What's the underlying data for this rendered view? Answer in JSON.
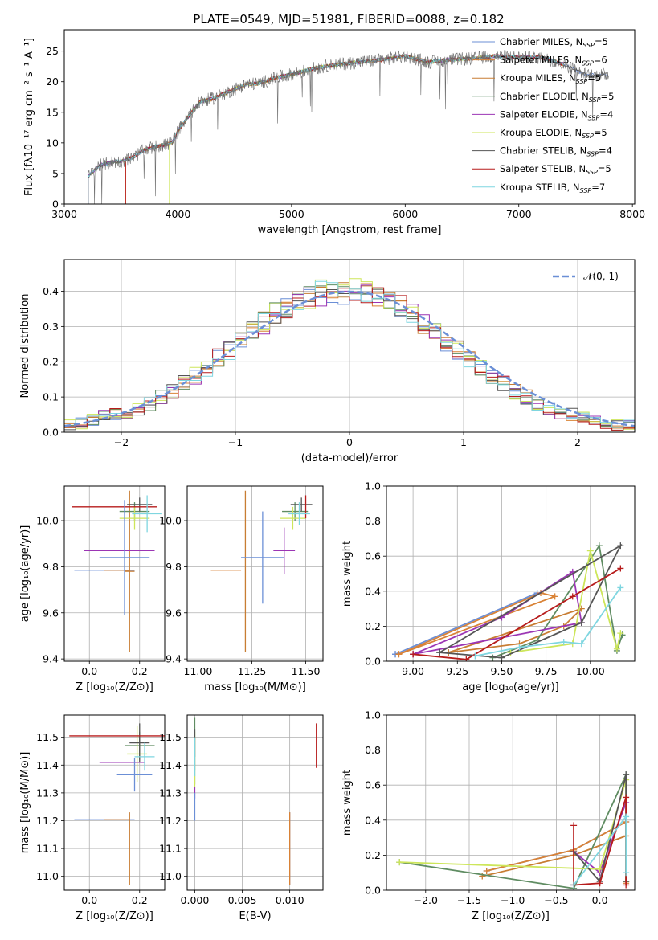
{
  "figure_title": "PLATE=0549, MJD=51981, FIBERID=0088, z=0.182",
  "model_colors": [
    "#6b8fd6",
    "#d98236",
    "#c87d33",
    "#5f8c62",
    "#9b35b4",
    "#cde65a",
    "#555555",
    "#b71c1c",
    "#7fd6e0"
  ],
  "chart_data": [
    {
      "id": "spectrum",
      "type": "line",
      "xlabel": "wavelength [Angstrom, rest frame]",
      "ylabel": "Flux [fλ10⁻¹⁷ erg cm⁻² s⁻¹ A⁻¹]",
      "xlim": [
        3000,
        8020
      ],
      "ylim": [
        0,
        28.5
      ],
      "xticks": [
        3000,
        4000,
        5000,
        6000,
        7000,
        8000
      ],
      "yticks": [
        0,
        5,
        10,
        15,
        20,
        25
      ],
      "grid": false,
      "legend_position": "upper-right",
      "legend": [
        "Chabrier MILES, N_SSP=5",
        "Salpeter MILES, N_SSP=6",
        "Kroupa MILES, N_SSP=5",
        "Chabrier ELODIE, N_SSP=5",
        "Salpeter ELODIE, N_SSP=4",
        "Kroupa ELODIE, N_SSP=5",
        "Chabrier STELIB, N_SSP=4",
        "Salpeter STELIB, N_SSP=5",
        "Kroupa STELIB, N_SSP=7"
      ],
      "data_x": [
        3210,
        3300,
        3400,
        3500,
        3600,
        3700,
        3800,
        3900,
        3950,
        4000,
        4100,
        4200,
        4300,
        4400,
        4500,
        4600,
        4700,
        4800,
        4900,
        5000,
        5200,
        5400,
        5600,
        5800,
        6000,
        6200,
        6400,
        6600,
        6800,
        7000,
        7200,
        7400,
        7600,
        7800
      ],
      "data_y": [
        4.5,
        6.2,
        6.8,
        7.0,
        7.6,
        8.8,
        9.4,
        9.7,
        10.0,
        12.0,
        14.5,
        16.8,
        17.2,
        18.0,
        18.8,
        19.6,
        19.7,
        20.3,
        20.8,
        21.2,
        22.2,
        22.8,
        23.2,
        23.6,
        24.2,
        23.2,
        23.6,
        23.8,
        24.2,
        24.0,
        24.0,
        22.8,
        21.0,
        21.2
      ]
    },
    {
      "id": "residual-histogram",
      "type": "line",
      "xlabel": "(data-model)/error",
      "ylabel": "Normed distribution",
      "xlim": [
        -2.5,
        2.5
      ],
      "ylim": [
        0,
        0.49
      ],
      "xticks": [
        -2,
        -1,
        0,
        1,
        2
      ],
      "yticks": [
        0.0,
        0.1,
        0.2,
        0.3,
        0.4
      ],
      "grid": true,
      "legend_position": "upper-right",
      "legend": [
        "𝒩(0, 1)"
      ],
      "bin_centers": [
        -2.45,
        -2.35,
        -2.25,
        -2.15,
        -2.05,
        -1.95,
        -1.85,
        -1.75,
        -1.65,
        -1.55,
        -1.45,
        -1.35,
        -1.25,
        -1.15,
        -1.05,
        -0.95,
        -0.85,
        -0.75,
        -0.65,
        -0.55,
        -0.45,
        -0.35,
        -0.25,
        -0.15,
        -0.05,
        0.05,
        0.15,
        0.25,
        0.35,
        0.45,
        0.55,
        0.65,
        0.75,
        0.85,
        0.95,
        1.05,
        1.15,
        1.25,
        1.35,
        1.45,
        1.55,
        1.65,
        1.75,
        1.85,
        1.95,
        2.05,
        2.15,
        2.25,
        2.35,
        2.45
      ],
      "hist_base": [
        0.02,
        0.025,
        0.035,
        0.045,
        0.05,
        0.055,
        0.065,
        0.08,
        0.1,
        0.115,
        0.14,
        0.16,
        0.185,
        0.21,
        0.235,
        0.26,
        0.285,
        0.31,
        0.335,
        0.355,
        0.37,
        0.385,
        0.395,
        0.4,
        0.4,
        0.4,
        0.395,
        0.385,
        0.37,
        0.355,
        0.335,
        0.31,
        0.285,
        0.26,
        0.235,
        0.21,
        0.185,
        0.16,
        0.14,
        0.115,
        0.1,
        0.08,
        0.065,
        0.055,
        0.05,
        0.045,
        0.035,
        0.025,
        0.02,
        0.018
      ]
    },
    {
      "id": "age-vs-Z",
      "type": "scatter",
      "xlabel": "Z [log₁₀(Z/Z⊙)]",
      "ylabel": "age  [log₁₀(age/yr)]",
      "xlim": [
        -0.1,
        0.3
      ],
      "ylim": [
        9.39,
        10.15
      ],
      "xticks": [
        0.0,
        0.2
      ],
      "yticks": [
        9.4,
        9.6,
        9.8,
        10.0
      ],
      "grid": true,
      "points": [
        {
          "x": 0.06,
          "y": 9.785,
          "xerr": 0.12,
          "yerr": 0.0
        },
        {
          "x": 0.11,
          "y": 9.785,
          "xerr": 0.05,
          "yerr": 0.0
        },
        {
          "x": 0.16,
          "y": 9.78,
          "xerr": 0.02,
          "yerr": 0.35
        },
        {
          "x": 0.18,
          "y": 10.04,
          "xerr": 0.06,
          "yerr": 0.04
        },
        {
          "x": 0.12,
          "y": 9.87,
          "xerr": 0.14,
          "yerr": 0.0
        },
        {
          "x": 0.18,
          "y": 10.01,
          "xerr": 0.06,
          "yerr": 0.05
        },
        {
          "x": 0.2,
          "y": 10.07,
          "xerr": 0.05,
          "yerr": 0.03
        },
        {
          "x": 0.1,
          "y": 10.06,
          "xerr": 0.17,
          "yerr": 0.0
        },
        {
          "x": 0.23,
          "y": 10.03,
          "xerr": 0.06,
          "yerr": 0.08
        },
        {
          "x": 0.14,
          "y": 9.84,
          "xerr": 0.1,
          "yerr": 0.25
        }
      ]
    },
    {
      "id": "age-vs-mass",
      "type": "scatter",
      "xlabel": "mass [log₁₀(M/M⊙)]",
      "ylabel": "",
      "xlim": [
        10.95,
        11.58
      ],
      "ylim": [
        9.39,
        10.15
      ],
      "xticks": [
        11.0,
        11.25,
        11.5
      ],
      "yticks": [
        9.4,
        9.6,
        9.8,
        10.0
      ],
      "grid": true,
      "points": [
        {
          "x": 11.2,
          "y": 9.785,
          "xerr": 0.0,
          "yerr": 0.0
        },
        {
          "x": 11.13,
          "y": 9.785,
          "xerr": 0.07,
          "yerr": 0.0
        },
        {
          "x": 11.22,
          "y": 9.78,
          "xerr": 0.0,
          "yerr": 0.35
        },
        {
          "x": 11.45,
          "y": 10.04,
          "xerr": 0.06,
          "yerr": 0.04
        },
        {
          "x": 11.4,
          "y": 9.87,
          "xerr": 0.05,
          "yerr": 0.1
        },
        {
          "x": 11.44,
          "y": 10.01,
          "xerr": 0.06,
          "yerr": 0.05
        },
        {
          "x": 11.48,
          "y": 10.07,
          "xerr": 0.05,
          "yerr": 0.03
        },
        {
          "x": 11.5,
          "y": 10.06,
          "xerr": 0.0,
          "yerr": 0.05
        },
        {
          "x": 11.47,
          "y": 10.03,
          "xerr": 0.05,
          "yerr": 0.05
        },
        {
          "x": 11.3,
          "y": 9.84,
          "xerr": 0.1,
          "yerr": 0.2
        }
      ]
    },
    {
      "id": "weight-vs-age",
      "type": "line",
      "xlabel": "age  [log₁₀(age/yr)]",
      "ylabel": "mass weight",
      "xlim": [
        8.85,
        10.25
      ],
      "ylim": [
        0,
        1.0
      ],
      "xticks": [
        9.0,
        9.25,
        9.5,
        9.75,
        10.0
      ],
      "yticks": [
        0.0,
        0.2,
        0.4,
        0.6,
        0.8,
        1.0
      ],
      "grid": true,
      "series": [
        {
          "x": [
            8.9,
            9.7,
            8.9
          ],
          "y": [
            0.04,
            0.39,
            0.04
          ]
        },
        {
          "x": [
            8.92,
            9.72,
            9.8,
            8.92
          ],
          "y": [
            0.04,
            0.39,
            0.37,
            0.04
          ]
        },
        {
          "x": [
            9.2,
            9.6,
            9.85,
            9.95,
            9.2
          ],
          "y": [
            0.05,
            0.1,
            0.2,
            0.3,
            0.05
          ]
        },
        {
          "x": [
            9.45,
            9.7,
            10.05,
            10.15,
            10.18
          ],
          "y": [
            0.02,
            0.12,
            0.66,
            0.06,
            0.15
          ]
        },
        {
          "x": [
            9.0,
            9.5,
            9.9,
            9.95,
            9.0
          ],
          "y": [
            0.04,
            0.25,
            0.51,
            0.22,
            0.04
          ]
        },
        {
          "x": [
            9.55,
            9.9,
            10.0,
            10.15,
            10.17
          ],
          "y": [
            0.05,
            0.1,
            0.63,
            0.07,
            0.16
          ]
        },
        {
          "x": [
            9.15,
            9.5,
            9.95,
            10.17,
            9.15
          ],
          "y": [
            0.05,
            0.02,
            0.22,
            0.66,
            0.05
          ]
        },
        {
          "x": [
            9.0,
            9.3,
            9.9,
            10.17
          ],
          "y": [
            0.04,
            0.01,
            0.37,
            0.53
          ]
        },
        {
          "x": [
            9.35,
            9.6,
            9.85,
            9.95,
            10.17
          ],
          "y": [
            0.03,
            0.08,
            0.11,
            0.1,
            0.42
          ]
        }
      ]
    },
    {
      "id": "mass-vs-Z",
      "type": "scatter",
      "xlabel": "Z [log₁₀(Z/Z⊙)]",
      "ylabel": "mass [log₁₀(M/M⊙)]",
      "xlim": [
        -0.1,
        0.3
      ],
      "ylim": [
        10.95,
        11.58
      ],
      "xticks": [
        0.0,
        0.2
      ],
      "yticks": [
        11.0,
        11.1,
        11.2,
        11.3,
        11.4,
        11.5
      ],
      "grid": true,
      "points": [
        {
          "x": 0.06,
          "y": 11.205,
          "xerr": 0.12,
          "yerr": 0.0
        },
        {
          "x": 0.11,
          "y": 11.205,
          "xerr": 0.05,
          "yerr": 0.0
        },
        {
          "x": 0.16,
          "y": 11.1,
          "xerr": 0.0,
          "yerr": 0.13
        },
        {
          "x": 0.2,
          "y": 11.47,
          "xerr": 0.06,
          "yerr": 0.05
        },
        {
          "x": 0.13,
          "y": 11.41,
          "xerr": 0.09,
          "yerr": 0.0
        },
        {
          "x": 0.19,
          "y": 11.44,
          "xerr": 0.04,
          "yerr": 0.1
        },
        {
          "x": 0.2,
          "y": 11.48,
          "xerr": 0.04,
          "yerr": 0.07
        },
        {
          "x": 0.11,
          "y": 11.505,
          "xerr": 0.19,
          "yerr": 0.0
        },
        {
          "x": 0.22,
          "y": 11.43,
          "xerr": 0.04,
          "yerr": 0.05
        },
        {
          "x": 0.18,
          "y": 11.365,
          "xerr": 0.07,
          "yerr": 0.06
        }
      ]
    },
    {
      "id": "mass-vs-EBV",
      "type": "scatter",
      "xlabel": "E(B-V)",
      "ylabel": "",
      "xlim": [
        -0.0008,
        0.0135
      ],
      "ylim": [
        10.95,
        11.58
      ],
      "xticks": [
        0.0,
        0.005,
        0.01
      ],
      "xtick_labels": [
        "0.000",
        "0.005",
        "0.010"
      ],
      "yticks": [
        11.0,
        11.1,
        11.2,
        11.3,
        11.4,
        11.5
      ],
      "grid": true,
      "points": [
        {
          "x": 0.01,
          "y": 11.1,
          "xerr": 0.0,
          "yerr": 0.13
        },
        {
          "x": 0.01,
          "y": 11.1,
          "xerr": 0.0,
          "yerr": 0.13
        },
        {
          "x": 0.0,
          "y": 11.44,
          "xerr": 0.0,
          "yerr": 0.06
        },
        {
          "x": 0.0,
          "y": 11.45,
          "xerr": 0.0,
          "yerr": 0.12
        },
        {
          "x": 0.0,
          "y": 11.3,
          "xerr": 0.0,
          "yerr": 0.02
        },
        {
          "x": 0.0,
          "y": 11.42,
          "xerr": 0.0,
          "yerr": 0.1
        },
        {
          "x": 0.0,
          "y": 11.48,
          "xerr": 0.0,
          "yerr": 0.05
        },
        {
          "x": 0.0128,
          "y": 11.47,
          "xerr": 0.0,
          "yerr": 0.08
        },
        {
          "x": 0.0,
          "y": 11.43,
          "xerr": 0.0,
          "yerr": 0.07
        },
        {
          "x": 0.0,
          "y": 11.25,
          "xerr": 0.0,
          "yerr": 0.05
        }
      ]
    },
    {
      "id": "weight-vs-Z",
      "type": "line",
      "xlabel": "Z [log₁₀(Z/Z⊙)]",
      "ylabel": "mass weight",
      "xlim": [
        -2.45,
        0.4
      ],
      "ylim": [
        0,
        1.0
      ],
      "xticks": [
        -2.0,
        -1.5,
        -1.0,
        -0.5,
        0.0
      ],
      "yticks": [
        0.0,
        0.2,
        0.4,
        0.6,
        0.8,
        1.0
      ],
      "grid": true,
      "series": [
        {
          "x": [
            -1.3,
            -0.3,
            0.3
          ],
          "y": [
            0.11,
            0.23,
            0.39
          ]
        },
        {
          "x": [
            -1.3,
            -0.3,
            0.3,
            0.3
          ],
          "y": [
            0.11,
            0.23,
            0.39,
            0.04
          ]
        },
        {
          "x": [
            -1.35,
            -0.3,
            0.3
          ],
          "y": [
            0.08,
            0.2,
            0.31
          ]
        },
        {
          "x": [
            -2.3,
            -0.3,
            0.3,
            0.3
          ],
          "y": [
            0.16,
            0.01,
            0.66,
            0.05
          ]
        },
        {
          "x": [
            -0.3,
            0.0,
            0.3
          ],
          "y": [
            0.22,
            0.1,
            0.5
          ]
        },
        {
          "x": [
            -2.3,
            0.0,
            0.3,
            0.3
          ],
          "y": [
            0.16,
            0.12,
            0.63,
            0.05
          ]
        },
        {
          "x": [
            -0.3,
            0.0,
            0.3,
            0.3
          ],
          "y": [
            0.22,
            0.05,
            0.66,
            0.05
          ]
        },
        {
          "x": [
            -0.3,
            -0.3,
            0.0,
            0.3,
            0.3
          ],
          "y": [
            0.37,
            0.03,
            0.04,
            0.53,
            0.03
          ]
        },
        {
          "x": [
            -0.3,
            0.3,
            0.3
          ],
          "y": [
            0.03,
            0.42,
            0.1
          ]
        }
      ]
    }
  ]
}
